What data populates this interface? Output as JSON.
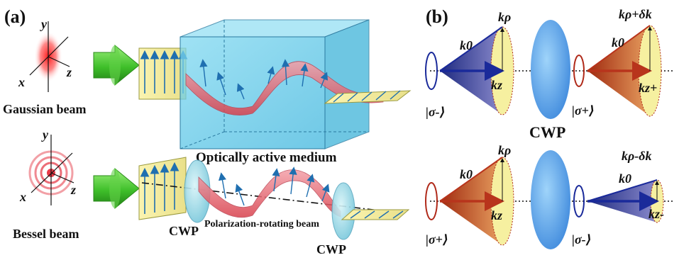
{
  "panel_a": {
    "label": "(a)",
    "gaussian_label": "Gaussian beam",
    "bessel_label": "Bessel beam",
    "medium_label": "Optically active medium",
    "beam_label": "Polarization-rotating beam",
    "cwp_left": "CWP",
    "cwp_right": "CWP",
    "axis_x": "x",
    "axis_y": "y",
    "axis_z": "z"
  },
  "panel_b": {
    "label": "(b)",
    "cwp": "CWP",
    "top_left": {
      "k0": "k0",
      "krho": "kρ",
      "kz": "kz",
      "state": "|σ-⟩"
    },
    "top_right": {
      "k0": "k0",
      "krho": "kρ+δk",
      "kz": "kz+",
      "state": "|σ+⟩"
    },
    "bottom_left": {
      "k0": "k0",
      "krho": "kρ",
      "kz": "kz",
      "state": "|σ+⟩"
    },
    "bottom_right": {
      "k0": "k0",
      "krho": "kρ-δk",
      "kz": "kz-",
      "state": "|σ-⟩"
    }
  },
  "colors": {
    "box": "#5bc8e8",
    "cone_blue": "#2a3a9a",
    "cone_red": "#b8341c",
    "cone_yellow": "#f6f0a0",
    "lens": "#5aa8e8",
    "arrow_green": "#3fbf2a",
    "wave_red": "#e8606a",
    "state_blue": "#1f3ea8",
    "state_red": "#b02a1a"
  }
}
